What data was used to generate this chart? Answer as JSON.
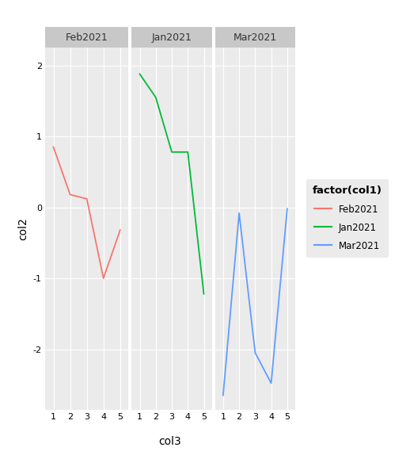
{
  "panels": [
    {
      "label": "Feb2021",
      "x": [
        1,
        2,
        3,
        4,
        5
      ],
      "y": [
        0.85,
        0.18,
        0.12,
        -1.0,
        -0.32
      ],
      "color": "#F8766D"
    },
    {
      "label": "Jan2021",
      "x": [
        1,
        2,
        3,
        4,
        5
      ],
      "y": [
        1.88,
        1.55,
        0.78,
        0.78,
        -1.22
      ],
      "color": "#00BA38"
    },
    {
      "label": "Mar2021",
      "x": [
        1,
        2,
        3,
        4,
        5
      ],
      "y": [
        -2.65,
        -0.08,
        -2.05,
        -2.48,
        -0.02
      ],
      "color": "#619CFF"
    }
  ],
  "ylim": [
    -2.85,
    2.25
  ],
  "yticks": [
    -2,
    -1,
    0,
    1,
    2
  ],
  "xticks": [
    1,
    2,
    3,
    4,
    5
  ],
  "xlabel": "col3",
  "ylabel": "col2",
  "legend_title": "factor(col1)",
  "bg_panel": "#EBEBEB",
  "bg_figure": "#FFFFFF",
  "grid_color": "#FFFFFF",
  "strip_bg": "#C8C8C8",
  "strip_text_color": "#333333",
  "between_panel_bg": "#FFFFFF"
}
